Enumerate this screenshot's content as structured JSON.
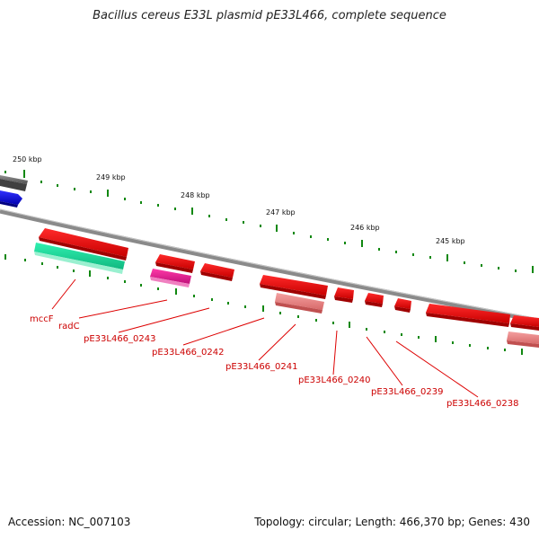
{
  "title": "Bacillus cereus E33L plasmid pE33L466, complete sequence",
  "footer": {
    "accession": "Accession: NC_007103",
    "summary": "Topology: circular; Length: 466,370 bp; Genes: 430"
  },
  "scale_labels": [
    "250 kbp",
    "249 kbp",
    "248 kbp",
    "247 kbp",
    "246 kbp",
    "245 kbp"
  ],
  "genes": [
    {
      "label": "mccF",
      "color": "#2ee8a0"
    },
    {
      "label": "radC",
      "color": "#ff0000"
    },
    {
      "label": "pE33L466_0243",
      "color": "#ff1493"
    },
    {
      "label": "pE33L466_0242",
      "color": "#ff0000"
    },
    {
      "label": "pE33L466_0241",
      "color": "#ff0000"
    },
    {
      "label": "pE33L466_0240",
      "color": "#ff0000"
    },
    {
      "label": "pE33L466_0239",
      "color": "#ff0000"
    },
    {
      "label": "pE33L466_0238",
      "color": "#ff0000"
    }
  ],
  "colors": {
    "backbone": "#888888",
    "tick": "#118811",
    "label_line": "#dd0000",
    "cds_forward": "#ff0000",
    "cds_reverse_light": "#f08080",
    "other_gray": "#707070",
    "other_blue": "#0000ee"
  }
}
